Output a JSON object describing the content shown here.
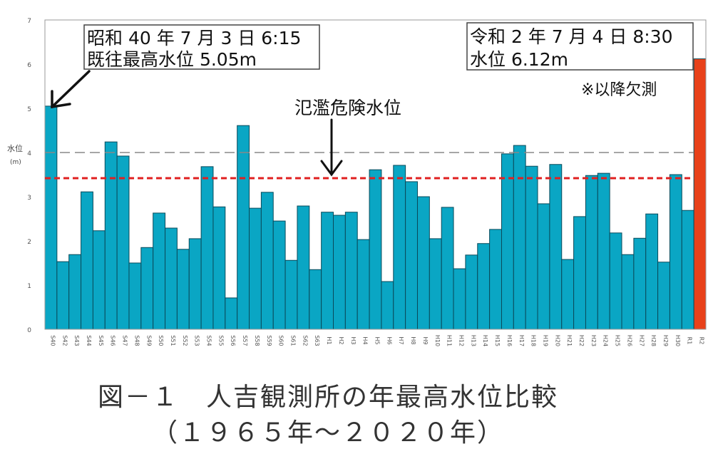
{
  "chart_data": {
    "type": "bar",
    "title": "図－１　人吉観測所の年最高水位比較",
    "subtitle": "（１９６５年～２０２０年）",
    "ylabel": "水位",
    "yunit": "(m)",
    "ylim": [
      0,
      7
    ],
    "yticks": [
      "0",
      "1",
      "2",
      "3",
      "4",
      "5",
      "6",
      "7"
    ],
    "categories": [
      "S40",
      "S42",
      "S43",
      "S44",
      "S45",
      "S46",
      "S47",
      "S48",
      "S49",
      "S50",
      "S51",
      "S52",
      "S53",
      "S54",
      "S55",
      "S56",
      "S57",
      "S58",
      "S59",
      "S60",
      "S61",
      "S62",
      "S63",
      "H1",
      "H2",
      "H3",
      "H4",
      "H5",
      "H6",
      "H7",
      "H8",
      "H9",
      "H10",
      "H11",
      "H12",
      "H13",
      "H14",
      "H15",
      "H16",
      "H17",
      "H18",
      "H19",
      "H20",
      "H21",
      "H22",
      "H23",
      "H24",
      "H25",
      "H26",
      "H27",
      "H28",
      "H29",
      "H30",
      "R1",
      "R2"
    ],
    "values": [
      5.05,
      1.53,
      1.69,
      3.11,
      2.23,
      4.24,
      3.92,
      1.5,
      1.85,
      2.63,
      2.29,
      1.81,
      2.05,
      3.68,
      2.77,
      0.71,
      4.61,
      2.74,
      3.1,
      2.45,
      1.56,
      2.79,
      1.35,
      2.65,
      2.58,
      2.65,
      2.03,
      3.61,
      1.08,
      3.71,
      3.34,
      3.0,
      2.05,
      2.76,
      1.37,
      1.68,
      1.94,
      2.26,
      3.97,
      4.16,
      3.69,
      2.84,
      3.73,
      1.58,
      2.55,
      3.48,
      3.53,
      2.18,
      1.69,
      2.06,
      2.61,
      1.52,
      3.5,
      2.69,
      6.12
    ],
    "highlight_index": 54,
    "colors": {
      "bar": "#0aa6c4",
      "highlight": "#e8411a",
      "danger_line": "#e02020",
      "ref_line": "#888888"
    },
    "reference_lines": [
      {
        "value": 4.0,
        "style": "gray-dashed"
      },
      {
        "value": 3.42,
        "style": "red-dashed",
        "label": "氾濫危険水位"
      }
    ],
    "annotations": {
      "left_box": {
        "line1": "昭和 40 年 7 月 3 日  6:15",
        "line2": "既往最高水位  5.05m"
      },
      "right_box": {
        "line1": "令和 2 年 7 月 4 日  8:30",
        "line2": "水位  6.12m"
      },
      "note": "※以降欠測"
    },
    "grid": false
  }
}
